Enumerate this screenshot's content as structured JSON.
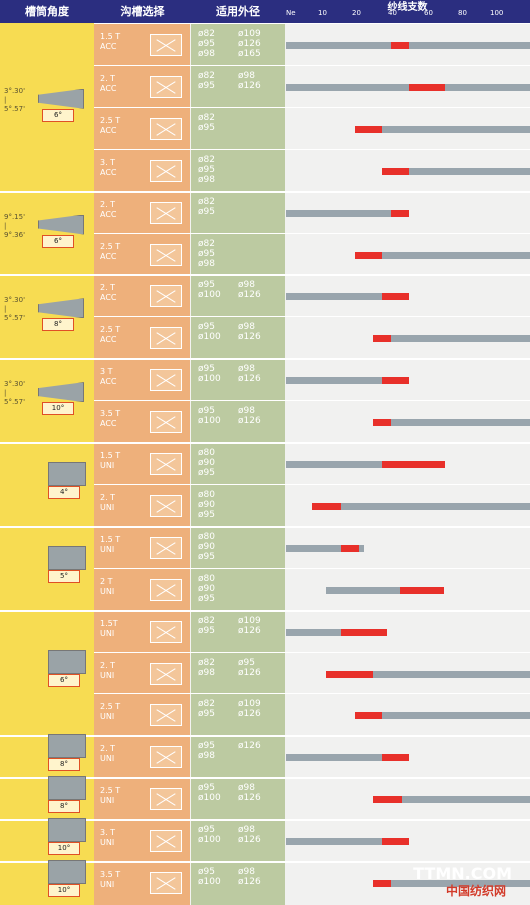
{
  "header": {
    "col_angle": "槽筒角度",
    "col_groove": "沟槽选择",
    "col_diameter": "适用外径",
    "col_count": "纱线支数",
    "scale": [
      "Ne",
      "10",
      "20",
      "40",
      "60",
      "80",
      "100"
    ]
  },
  "angles": [
    {
      "range_top": "3°.30'",
      "range_bot": "5°.57'",
      "deg": "6°"
    },
    {
      "range_top": "9°.15'",
      "range_bot": "9°.36'",
      "deg": "6°"
    },
    {
      "range_top": "3°.30'",
      "range_bot": "5°.57'",
      "deg": "8°"
    },
    {
      "range_top": "3°.30'",
      "range_bot": "5°.57'",
      "deg": "10°"
    },
    {
      "deg": "4°"
    },
    {
      "deg": "5°"
    },
    {
      "deg": "6°"
    },
    {
      "deg": "8°"
    },
    {
      "deg": "8°"
    },
    {
      "deg": "10°"
    },
    {
      "deg": "10°"
    }
  ],
  "rows": [
    {
      "count": "1.5 T",
      "type": "ACC",
      "dia": [
        "ø82",
        "ø109",
        "ø95",
        "ø126",
        "ø98",
        "ø165"
      ],
      "gray_start": 0,
      "gray_end": 100,
      "red_start": 40,
      "red_end": 50
    },
    {
      "count": "2. T",
      "type": "ACC",
      "dia": [
        "ø82",
        "ø98",
        "ø95",
        "ø126"
      ],
      "gray_start": 0,
      "gray_end": 100,
      "red_start": 50,
      "red_end": 70
    },
    {
      "count": "2.5 T",
      "type": "ACC",
      "dia": [
        "ø82",
        "",
        "ø95",
        ""
      ],
      "gray_start": 20,
      "gray_end": 100,
      "red_start": 20,
      "red_end": 35
    },
    {
      "count": "3. T",
      "type": "ACC",
      "dia": [
        "ø82",
        "",
        "ø95",
        "",
        "ø98",
        ""
      ],
      "gray_start": 35,
      "gray_end": 100,
      "red_start": 35,
      "red_end": 50
    },
    {
      "count": "2. T",
      "type": "ACC",
      "dia": [
        "ø82",
        "",
        "ø95",
        ""
      ],
      "gray_start": 0,
      "gray_end": 50,
      "red_start": 40,
      "red_end": 50
    },
    {
      "count": "2.5 T",
      "type": "ACC",
      "dia": [
        "ø82",
        "",
        "ø95",
        "",
        "ø98",
        ""
      ],
      "gray_start": 20,
      "gray_end": 100,
      "red_start": 20,
      "red_end": 35
    },
    {
      "count": "2. T",
      "type": "ACC",
      "dia": [
        "ø95",
        "ø98",
        "ø100",
        "ø126"
      ],
      "gray_start": 0,
      "gray_end": 50,
      "red_start": 35,
      "red_end": 50
    },
    {
      "count": "2.5 T",
      "type": "ACC",
      "dia": [
        "ø95",
        "ø98",
        "ø100",
        "ø126"
      ],
      "gray_start": 30,
      "gray_end": 100,
      "red_start": 30,
      "red_end": 40
    },
    {
      "count": "3 T",
      "type": "ACC",
      "dia": [
        "ø95",
        "ø98",
        "ø100",
        "ø126"
      ],
      "gray_start": 0,
      "gray_end": 50,
      "red_start": 35,
      "red_end": 50
    },
    {
      "count": "3.5 T",
      "type": "ACC",
      "dia": [
        "ø95",
        "ø98",
        "ø100",
        "ø126"
      ],
      "gray_start": 30,
      "gray_end": 100,
      "red_start": 30,
      "red_end": 40
    },
    {
      "count": "1.5 T",
      "type": "UNI",
      "dia": [
        "ø80",
        "",
        "ø90",
        "",
        "ø95",
        ""
      ],
      "gray_start": 0,
      "gray_end": 70,
      "red_start": 35,
      "red_end": 70
    },
    {
      "count": "2. T",
      "type": "UNI",
      "dia": [
        "ø80",
        "",
        "ø90",
        "",
        "ø95",
        ""
      ],
      "gray_start": 8,
      "gray_end": 100,
      "red_start": 8,
      "red_end": 16
    },
    {
      "count": "1.5 T",
      "type": "UNI",
      "dia": [
        "ø80",
        "",
        "ø90",
        "",
        "ø95",
        ""
      ],
      "gray_start": 0,
      "gray_end": 25,
      "red_start": 16,
      "red_end": 22
    },
    {
      "count": "2 T",
      "type": "UNI",
      "dia": [
        "ø80",
        "",
        "ø90",
        "",
        "ø95",
        ""
      ],
      "gray_start": 12,
      "gray_end": 70,
      "red_start": 45,
      "red_end": 70
    },
    {
      "count": "1.5T",
      "type": "UNI",
      "dia": [
        "ø82",
        "ø109",
        "ø95",
        "ø126"
      ],
      "gray_start": 0,
      "gray_end": 38,
      "red_start": 16,
      "red_end": 38
    },
    {
      "count": "2. T",
      "type": "UNI",
      "dia": [
        "ø82",
        "ø95",
        "ø98",
        "ø126"
      ],
      "gray_start": 12,
      "gray_end": 100,
      "red_start": 12,
      "red_end": 30
    },
    {
      "count": "2.5 T",
      "type": "UNI",
      "dia": [
        "ø82",
        "ø109",
        "ø95",
        "ø126"
      ],
      "gray_start": 20,
      "gray_end": 100,
      "red_start": 20,
      "red_end": 35
    },
    {
      "count": "2. T",
      "type": "UNI",
      "dia": [
        "ø95",
        "ø126",
        "ø98",
        ""
      ],
      "gray_start": 0,
      "gray_end": 50,
      "red_start": 35,
      "red_end": 50
    },
    {
      "count": "2.5 T",
      "type": "UNI",
      "dia": [
        "ø95",
        "ø98",
        "ø100",
        "ø126"
      ],
      "gray_start": 30,
      "gray_end": 100,
      "red_start": 30,
      "red_end": 46
    },
    {
      "count": "3. T",
      "type": "UNI",
      "dia": [
        "ø95",
        "ø98",
        "ø100",
        "ø126"
      ],
      "gray_start": 0,
      "gray_end": 50,
      "red_start": 35,
      "red_end": 50
    },
    {
      "count": "3.5 T",
      "type": "UNI",
      "dia": [
        "ø95",
        "ø98",
        "ø100",
        "ø126"
      ],
      "gray_start": 30,
      "gray_end": 100,
      "red_start": 30,
      "red_end": 40
    }
  ],
  "watermark": {
    "text": "TTMN.COM",
    "text2": "中国纺织网"
  }
}
